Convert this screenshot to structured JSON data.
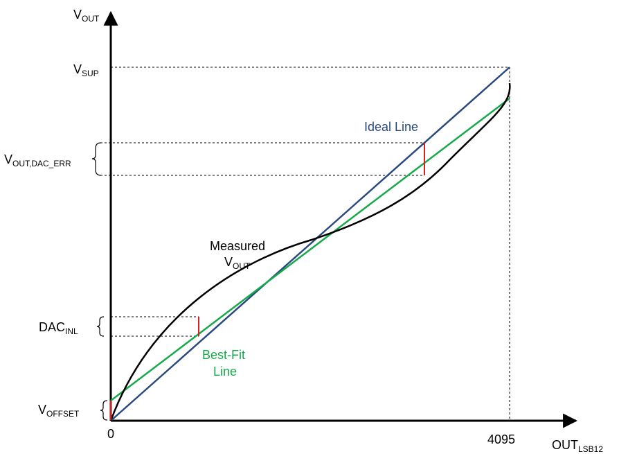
{
  "labels": {
    "y_axis_main": "V",
    "y_axis_sub": "OUT",
    "x_axis_main": "OUT",
    "x_axis_sub": "LSB12",
    "origin": "0",
    "x_max": "4095",
    "v_sup_main": "V",
    "v_sup_sub": "SUP",
    "v_out_dac_err_main": "V",
    "v_out_dac_err_sub": "OUT,DAC_ERR",
    "dac_inl_main": "DAC",
    "dac_inl_sub": "INL",
    "v_offset_main": "V",
    "v_offset_sub": "OFFSET",
    "ideal_line": "Ideal Line",
    "measured_line1": "Measured",
    "measured_line2_main": "V",
    "measured_line2_sub": "OUT",
    "best_fit_line1": "Best-Fit",
    "best_fit_line2": "Line"
  },
  "colors": {
    "ideal": "#2a4a7f",
    "best_fit": "#16a94a",
    "measured": "#000000",
    "error_marker": "#d42020"
  }
}
